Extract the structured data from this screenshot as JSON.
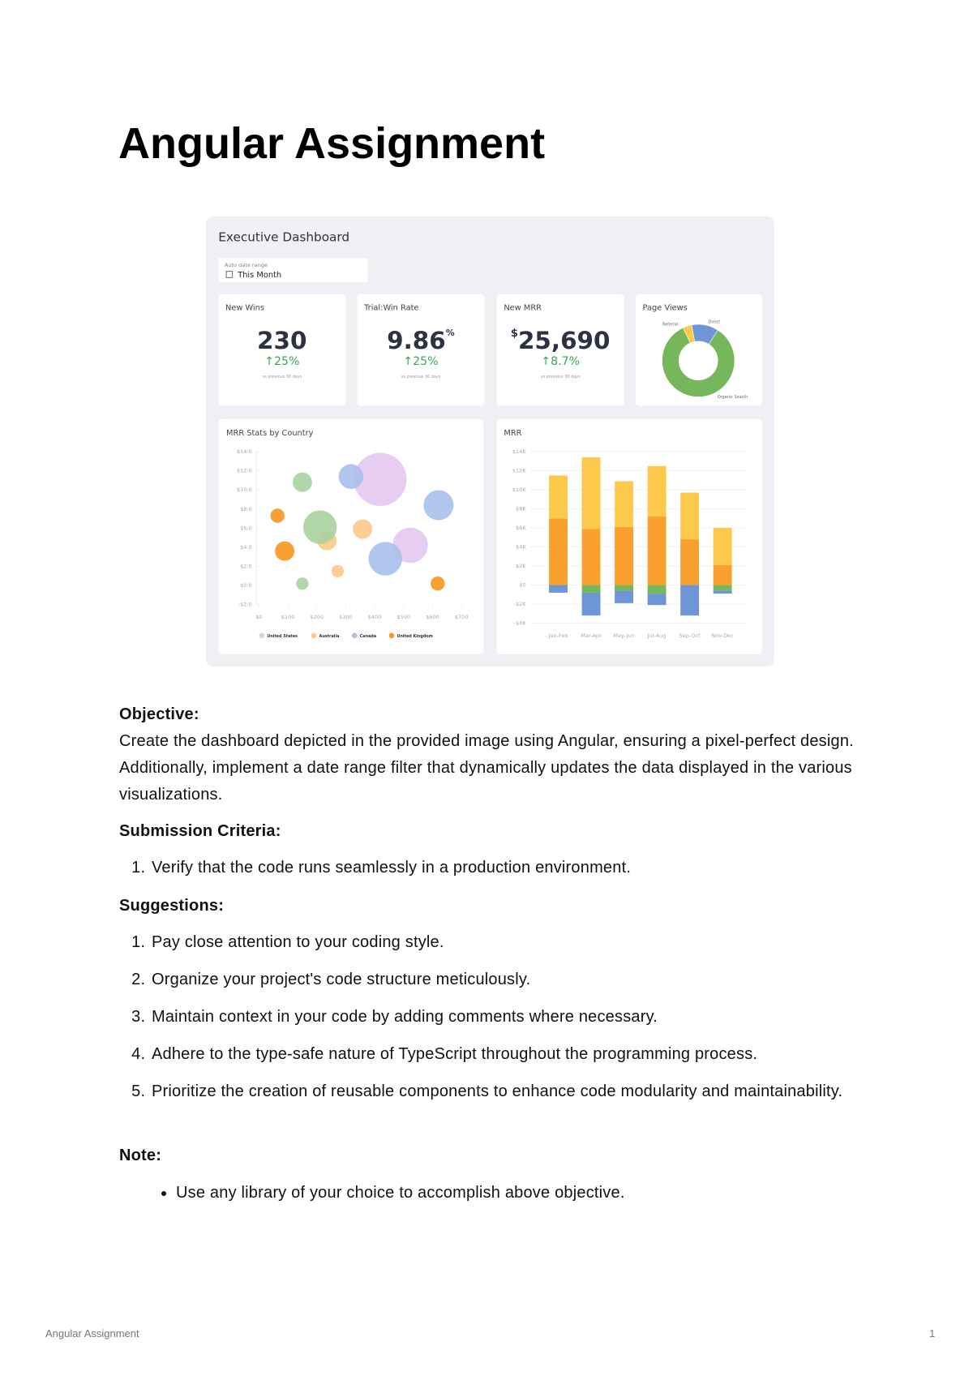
{
  "title": "Angular Assignment",
  "dashboard": {
    "title": "Executive Dashboard",
    "date_filter": {
      "label": "Auto date range",
      "value": "This Month"
    },
    "kpis": [
      {
        "title": "New Wins",
        "value": "230",
        "change": "↑25%",
        "note": "vs previous 30 days"
      },
      {
        "title": "Trial:Win Rate",
        "value": "9.86",
        "suffix": "%",
        "change": "↑25%",
        "note": "vs previous 30 days"
      },
      {
        "title": "New MRR",
        "prefix": "$",
        "value": "25,690",
        "change": "↑8.7%",
        "note": "vs previous 30 days"
      }
    ],
    "page_views": {
      "type": "pie",
      "title": "Page Views",
      "categories": [
        "Referral",
        "Direct",
        "Organic Search"
      ],
      "values": [
        4,
        12,
        84
      ],
      "colors": [
        "#fdc94a",
        "#6e95d6",
        "#77b75c"
      ]
    },
    "mrr_by_country": {
      "type": "scatter",
      "title": "MRR Stats by Country",
      "xlim": [
        0,
        700
      ],
      "xticks": [
        {
          "value": 0,
          "label": "$0"
        },
        {
          "value": 100,
          "label": "$100"
        },
        {
          "value": 200,
          "label": "$200"
        },
        {
          "value": 300,
          "label": "$300"
        },
        {
          "value": 400,
          "label": "$400"
        },
        {
          "value": 500,
          "label": "$500"
        },
        {
          "value": 600,
          "label": "$600"
        },
        {
          "value": 700,
          "label": "$700"
        }
      ],
      "ylim": [
        -2,
        14
      ],
      "yticks": [
        {
          "value": -2,
          "label": "-$2.0"
        },
        {
          "value": 0,
          "label": "$0.0"
        },
        {
          "value": 2,
          "label": "$2.0"
        },
        {
          "value": 4,
          "label": "$4.0"
        },
        {
          "value": 6,
          "label": "$6.0"
        },
        {
          "value": 8,
          "label": "$8.0"
        },
        {
          "value": 10,
          "label": "$10.0"
        },
        {
          "value": 12,
          "label": "$12.0"
        },
        {
          "value": 14,
          "label": "$14.0"
        }
      ],
      "series": [
        {
          "name": "United States",
          "color": "#e3c8ef",
          "x": [
            419,
            523
          ],
          "values": [
            11.1,
            4.2
          ],
          "sizes": [
            30,
            20
          ]
        },
        {
          "name": "Australia",
          "color": "#fcc98a",
          "x": [
            235,
            358,
            272
          ],
          "values": [
            4.7,
            5.9,
            1.5
          ],
          "sizes": [
            11,
            11,
            7
          ]
        },
        {
          "name": "Canada",
          "color": "#a9c0ea",
          "x": [
            318,
            621,
            437
          ],
          "values": [
            11.4,
            8.4,
            2.8
          ],
          "sizes": [
            14,
            17,
            19
          ]
        },
        {
          "name": "United Kingdom",
          "color": "#f8961e",
          "x": [
            64,
            89,
            618
          ],
          "values": [
            7.3,
            3.6,
            0.2
          ],
          "sizes": [
            8,
            11,
            8
          ]
        },
        {
          "color": "#a8d3a0",
          "x": [
            150,
            211,
            150
          ],
          "values": [
            10.8,
            6.1,
            0.2
          ],
          "sizes": [
            11,
            19,
            7
          ]
        }
      ]
    },
    "mrr": {
      "type": "bar",
      "stacked": true,
      "title": "MRR",
      "categories": [
        "Jan-Feb",
        "Mar-Apr",
        "May-Jun",
        "Jul-Aug",
        "Sep-Oct",
        "Nov-Dec"
      ],
      "ylim": [
        -4,
        14
      ],
      "yticks": [
        {
          "value": -4,
          "label": "-$4K"
        },
        {
          "value": -2,
          "label": "-$2K"
        },
        {
          "value": 0,
          "label": "$0"
        },
        {
          "value": 2,
          "label": "$2K"
        },
        {
          "value": 4,
          "label": "$4K"
        },
        {
          "value": 6,
          "label": "$6K"
        },
        {
          "value": 8,
          "label": "$8K"
        },
        {
          "value": 10,
          "label": "$10K"
        },
        {
          "value": 12,
          "label": "$12K"
        },
        {
          "value": 14,
          "label": "$14K"
        }
      ],
      "grid": true,
      "series": [
        {
          "color": "#f9a02f",
          "values": [
            7.0,
            5.9,
            6.1,
            7.2,
            4.8,
            2.1
          ]
        },
        {
          "color": "#fdc94a",
          "values": [
            4.5,
            7.5,
            4.8,
            5.3,
            4.9,
            3.9
          ]
        },
        {
          "color": "#77b75c",
          "values": [
            0,
            -0.8,
            -0.6,
            -0.9,
            0,
            -0.6
          ]
        },
        {
          "color": "#6e95d6",
          "values": [
            -0.8,
            -2.4,
            -1.3,
            -1.2,
            -3.2,
            -0.3
          ]
        }
      ]
    }
  },
  "objective": {
    "heading": "Objective:",
    "text": "Create the dashboard depicted in the provided image using Angular, ensuring a pixel-perfect design. Additionally, implement a date range filter that dynamically updates the data displayed in the various visualizations."
  },
  "submission": {
    "heading": "Submission Criteria:",
    "items": [
      "Verify that the code runs seamlessly in a production environment."
    ]
  },
  "suggestions": {
    "heading": "Suggestions:",
    "items": [
      "Pay close attention to your coding style.",
      "Organize your project's code structure meticulously.",
      "Maintain context in your code by adding comments where necessary.",
      "Adhere to the type-safe nature of TypeScript throughout the programming process.",
      "Prioritize the creation of reusable components to enhance code modularity and maintainability."
    ]
  },
  "note": {
    "heading": "Note:",
    "items": [
      "Use any library of your choice to accomplish above objective."
    ]
  },
  "footer": {
    "text": "Angular Assignment",
    "page": 1
  }
}
